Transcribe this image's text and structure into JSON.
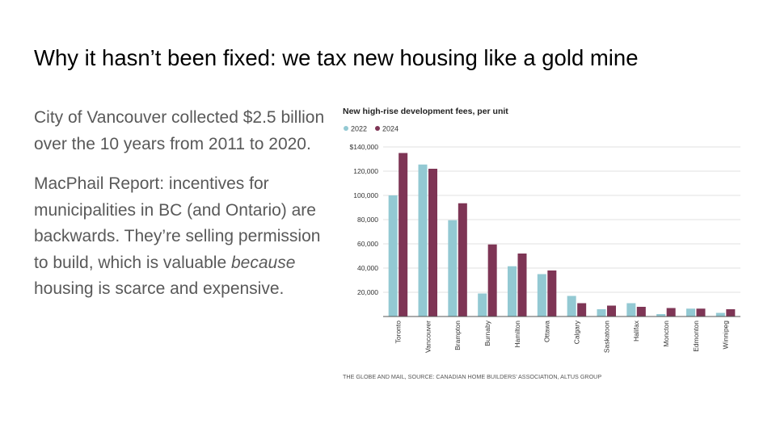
{
  "slide": {
    "title": "Why it hasn’t been fixed: we tax new housing like a gold mine",
    "paragraph1": "City of Vancouver collected $2.5 billion over the 10 years from 2011 to 2020.",
    "paragraph2_before": "MacPhail Report: incentives for municipalities in BC (and Ontario) are backwards. They’re selling permission to build, which is valuable ",
    "paragraph2_emphasis": "because",
    "paragraph2_after": " housing is scarce and expensive."
  },
  "chart_data": {
    "type": "bar",
    "title": "New high-rise development fees, per unit",
    "categories": [
      "Toronto",
      "Vancouver",
      "Brampton",
      "Burnaby",
      "Hamilton",
      "Ottawa",
      "Calgary",
      "Saskatoon",
      "Halifax",
      "Moncton",
      "Edmonton",
      "Winnipeg"
    ],
    "series": [
      {
        "name": "2022",
        "color": "#93c9d3",
        "values": [
          100000,
          125500,
          79500,
          19000,
          41500,
          35000,
          17000,
          6000,
          11000,
          2000,
          6500,
          3000
        ]
      },
      {
        "name": "2024",
        "color": "#7e3555",
        "values": [
          135000,
          122000,
          93500,
          59500,
          52000,
          38000,
          11000,
          9000,
          8000,
          7000,
          6500,
          6000
        ]
      }
    ],
    "ylim": [
      0,
      140000
    ],
    "yticks": [
      20000,
      40000,
      60000,
      80000,
      100000,
      120000,
      140000
    ],
    "ytick_labels": [
      "20,000",
      "40,000",
      "60,000",
      "80,000",
      "100,000",
      "120,000",
      "$140,000"
    ],
    "xlabel": "",
    "ylabel": "",
    "legend": "top-left",
    "source": "THE GLOBE AND MAIL, SOURCE: CANADIAN HOME BUILDERS’ ASSOCIATION, ALTUS GROUP"
  }
}
